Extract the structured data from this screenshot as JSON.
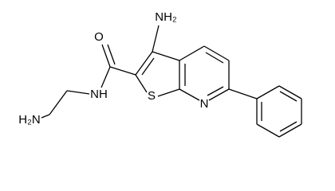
{
  "labels": {
    "amino_top": "NH₂",
    "oxygen": "O",
    "amide_nh": "NH",
    "amino_end": "H₂N",
    "sulfur": "S",
    "pyridine_n": "N"
  }
}
